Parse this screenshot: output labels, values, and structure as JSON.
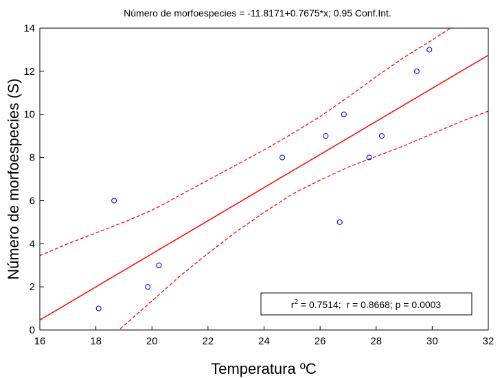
{
  "chart_data": {
    "type": "scatter",
    "title": "Número de morfoespecies = -11.8171+0.7675*x; 0.95 Conf.Int.",
    "xlabel": "Temperatura ºC",
    "ylabel": "Número de morfoespecies (S)",
    "xlim": [
      16,
      32
    ],
    "ylim": [
      0,
      14
    ],
    "xticks": [
      16,
      18,
      20,
      22,
      24,
      26,
      28,
      30,
      32
    ],
    "yticks": [
      0,
      2,
      4,
      6,
      8,
      10,
      12,
      14
    ],
    "points": [
      {
        "x": 18.1,
        "y": 1
      },
      {
        "x": 18.65,
        "y": 6
      },
      {
        "x": 19.85,
        "y": 2
      },
      {
        "x": 20.25,
        "y": 3
      },
      {
        "x": 24.65,
        "y": 8
      },
      {
        "x": 26.2,
        "y": 9
      },
      {
        "x": 26.7,
        "y": 5
      },
      {
        "x": 26.85,
        "y": 10
      },
      {
        "x": 27.75,
        "y": 8
      },
      {
        "x": 28.2,
        "y": 9
      },
      {
        "x": 29.45,
        "y": 12
      },
      {
        "x": 29.9,
        "y": 13
      }
    ],
    "regression": {
      "intercept": -11.8171,
      "slope": 0.7675
    },
    "confidence_band": {
      "level": 0.95,
      "x": [
        16,
        17,
        18,
        19,
        20,
        21,
        22,
        23,
        24,
        25,
        26,
        27,
        28,
        29,
        30,
        31,
        32
      ],
      "upper": [
        3.45,
        4.0,
        4.5,
        5.0,
        5.55,
        6.25,
        6.95,
        7.65,
        8.35,
        9.1,
        9.9,
        10.8,
        11.75,
        12.65,
        13.45,
        14.3,
        15.1
      ],
      "lower": [
        -2.6,
        -1.85,
        -0.9,
        0.2,
        1.35,
        2.5,
        3.55,
        4.55,
        5.45,
        6.3,
        6.95,
        7.55,
        8.05,
        8.55,
        9.1,
        9.65,
        10.15
      ]
    },
    "stats": {
      "r2_prefix": "r",
      "r2_exp": "2",
      "text": " = 0.7514;  r = 0.8668; p = 0.0003"
    },
    "colors": {
      "fit": "#ff0000",
      "band": "#ff0000",
      "points": "#0000ff",
      "axes": "#000000"
    },
    "grid": false
  }
}
